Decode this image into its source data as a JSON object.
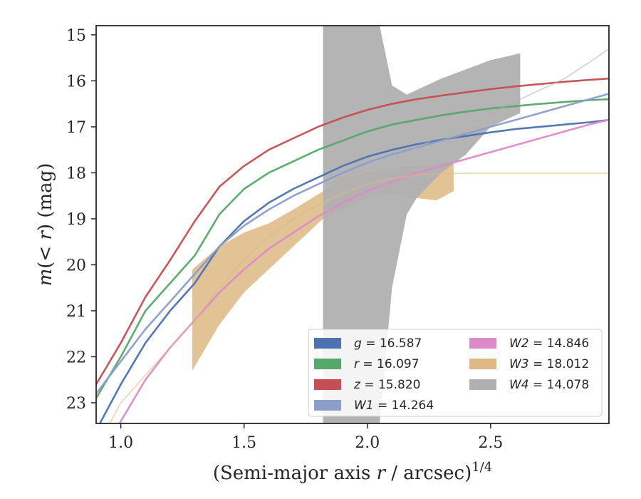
{
  "chart_data": {
    "type": "line",
    "xlabel": "(Semi-major axis r / arcsec)^1/4",
    "ylabel": "m(< r) (mag)",
    "xlim": [
      0.9,
      2.98
    ],
    "ylim": [
      23.45,
      14.8
    ],
    "y_inverted": true,
    "x_ticks": [
      "1.0",
      "1.5",
      "2.0",
      "2.5"
    ],
    "x_tick_values": [
      1.0,
      1.5,
      2.0,
      2.5
    ],
    "y_ticks": [
      "15",
      "16",
      "17",
      "18",
      "19",
      "20",
      "21",
      "22",
      "23"
    ],
    "y_tick_values": [
      15,
      16,
      17,
      18,
      19,
      20,
      21,
      22,
      23
    ],
    "grid": false,
    "legend_position": "lower-right",
    "series": [
      {
        "name": "g = 16.587",
        "color": "#4c72b0",
        "x": [
          0.9,
          1.0,
          1.1,
          1.2,
          1.3,
          1.4,
          1.5,
          1.6,
          1.7,
          1.8,
          1.9,
          2.0,
          2.1,
          2.2,
          2.3,
          2.4,
          2.5,
          2.6,
          2.7,
          2.8,
          2.9,
          2.98
        ],
        "y": [
          23.6,
          22.6,
          21.7,
          21.0,
          20.4,
          19.6,
          19.05,
          18.65,
          18.35,
          18.1,
          17.85,
          17.65,
          17.5,
          17.38,
          17.28,
          17.2,
          17.12,
          17.05,
          17.0,
          16.95,
          16.9,
          16.85
        ]
      },
      {
        "name": "r = 16.097",
        "color": "#55a868",
        "x": [
          0.9,
          1.0,
          1.1,
          1.2,
          1.3,
          1.4,
          1.5,
          1.6,
          1.7,
          1.8,
          1.9,
          2.0,
          2.1,
          2.2,
          2.3,
          2.4,
          2.5,
          2.6,
          2.7,
          2.8,
          2.9,
          2.98
        ],
        "y": [
          22.9,
          22.0,
          21.0,
          20.4,
          19.8,
          18.9,
          18.35,
          18.0,
          17.75,
          17.5,
          17.3,
          17.1,
          16.95,
          16.85,
          16.75,
          16.67,
          16.6,
          16.55,
          16.5,
          16.46,
          16.42,
          16.4
        ]
      },
      {
        "name": "z = 15.820",
        "color": "#c44e52",
        "x": [
          0.9,
          1.0,
          1.1,
          1.2,
          1.3,
          1.4,
          1.5,
          1.6,
          1.7,
          1.8,
          1.9,
          2.0,
          2.1,
          2.2,
          2.3,
          2.4,
          2.5,
          2.6,
          2.7,
          2.8,
          2.9,
          2.98
        ],
        "y": [
          22.6,
          21.7,
          20.7,
          19.9,
          19.05,
          18.3,
          17.85,
          17.5,
          17.25,
          17.0,
          16.8,
          16.63,
          16.5,
          16.4,
          16.32,
          16.25,
          16.18,
          16.12,
          16.07,
          16.02,
          15.98,
          15.95
        ]
      },
      {
        "name": "W1 = 14.264",
        "color": "#8c9dc8",
        "x": [
          0.9,
          1.0,
          1.1,
          1.2,
          1.3,
          1.4,
          1.5,
          1.6,
          1.7,
          1.8,
          1.9,
          2.0,
          2.1,
          2.2,
          2.3,
          2.4,
          2.5,
          2.6,
          2.7,
          2.8,
          2.9,
          2.98
        ],
        "y": [
          22.8,
          22.1,
          21.4,
          20.8,
          20.2,
          19.6,
          19.15,
          18.8,
          18.5,
          18.25,
          18.0,
          17.78,
          17.6,
          17.45,
          17.3,
          17.15,
          17.0,
          16.85,
          16.7,
          16.55,
          16.4,
          16.28
        ]
      },
      {
        "name": "W2 = 14.846",
        "color": "#dd8bc8",
        "x": [
          0.9,
          1.0,
          1.1,
          1.2,
          1.3,
          1.4,
          1.5,
          1.6,
          1.7,
          1.8,
          1.9,
          2.0,
          2.1,
          2.2,
          2.3,
          2.4,
          2.5,
          2.6,
          2.7,
          2.8,
          2.9,
          2.98
        ],
        "y": [
          24.5,
          23.4,
          22.5,
          21.8,
          21.2,
          20.6,
          20.1,
          19.65,
          19.3,
          18.95,
          18.65,
          18.4,
          18.2,
          18.0,
          17.85,
          17.7,
          17.55,
          17.4,
          17.25,
          17.1,
          16.95,
          16.85
        ]
      },
      {
        "name": "W3 = 18.012",
        "color": "#ddb883",
        "x": [
          0.9,
          1.0,
          1.1,
          1.2,
          1.3,
          1.4,
          1.5,
          1.6,
          1.7,
          1.8,
          1.9,
          2.0,
          2.1,
          2.2,
          2.3,
          2.4,
          2.5,
          2.6,
          2.7,
          2.8,
          2.9,
          2.98
        ],
        "y": [
          24.0,
          23.0,
          22.4,
          21.8,
          21.2,
          20.5,
          19.9,
          19.4,
          19.0,
          18.7,
          18.45,
          18.25,
          18.12,
          18.05,
          18.02,
          18.01,
          18.01,
          18.01,
          18.01,
          18.01,
          18.01,
          18.01
        ],
        "band_x": [
          1.29,
          1.4,
          1.5,
          1.6,
          1.7,
          1.82,
          1.9,
          2.0,
          2.1,
          2.2,
          2.28,
          2.35
        ],
        "band_upper": [
          20.1,
          19.6,
          19.3,
          19.1,
          18.8,
          18.4,
          18.1,
          18.0,
          17.9,
          17.85,
          17.8,
          17.75
        ],
        "band_lower": [
          22.3,
          21.3,
          20.6,
          20.1,
          19.6,
          19.0,
          18.8,
          18.55,
          18.45,
          18.55,
          18.6,
          18.4
        ]
      },
      {
        "name": "W4 = 14.078",
        "color": "#b0b0b0",
        "x": [
          1.82,
          1.9,
          2.0,
          2.1,
          2.2,
          2.3,
          2.4,
          2.5,
          2.6,
          2.7,
          2.8,
          2.9,
          2.98
        ],
        "y": [
          18.3,
          18.1,
          17.9,
          17.7,
          17.45,
          17.2,
          16.95,
          16.7,
          16.45,
          16.2,
          15.95,
          15.6,
          15.3
        ],
        "band_x": [
          1.82,
          1.9,
          2.0,
          2.05,
          2.1,
          2.16,
          2.2,
          2.3,
          2.4,
          2.5,
          2.62
        ],
        "band_upper": [
          14.8,
          14.8,
          14.8,
          14.8,
          16.1,
          16.3,
          16.2,
          15.95,
          15.75,
          15.55,
          15.4
        ],
        "band_lower": [
          23.45,
          23.45,
          23.45,
          23.45,
          20.5,
          18.9,
          18.55,
          18.0,
          17.6,
          17.0,
          16.7
        ]
      }
    ]
  }
}
